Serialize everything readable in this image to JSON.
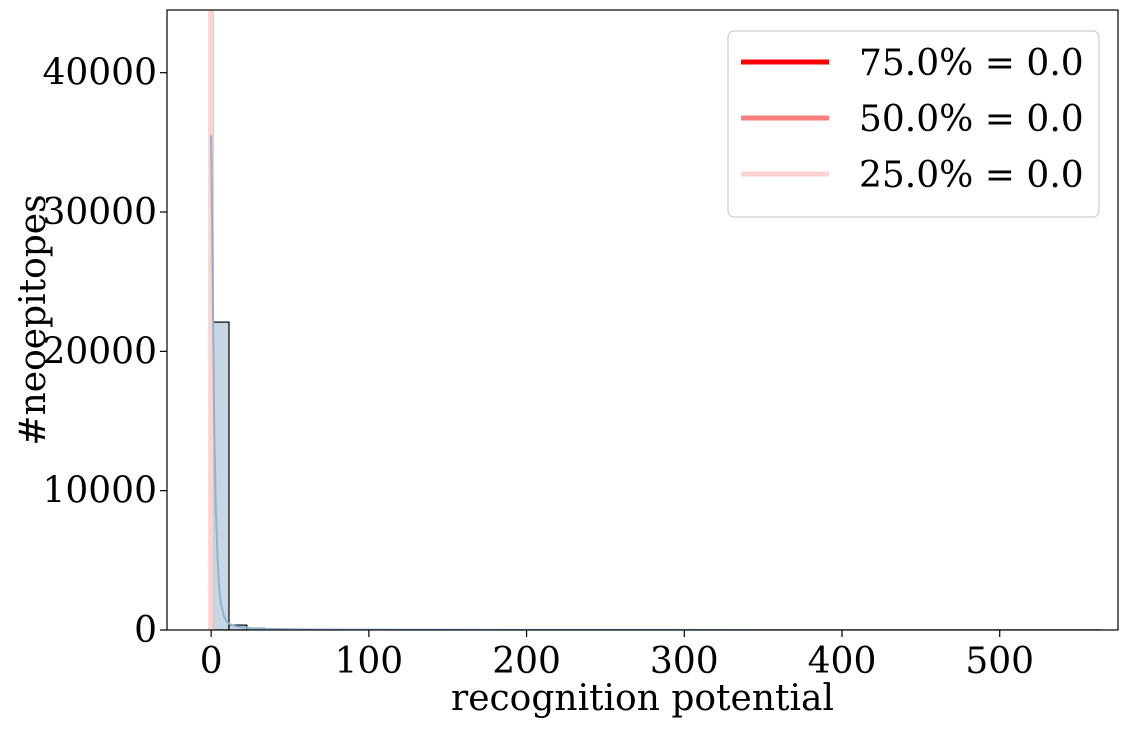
{
  "chart_data": {
    "type": "histogram",
    "xlabel": "recognition potential",
    "ylabel": "#neoepitopes",
    "xlim": [
      -28,
      575
    ],
    "ylim": [
      0,
      44500
    ],
    "xticks": [
      0,
      100,
      200,
      300,
      400,
      500
    ],
    "yticks": [
      0,
      10000,
      20000,
      30000,
      40000
    ],
    "grid": false,
    "bin_width": 11.3,
    "bins": [
      {
        "x0": 0,
        "x1": 11.3,
        "count": 22100
      },
      {
        "x0": 11.3,
        "x1": 22.6,
        "count": 350
      },
      {
        "x0": 22.6,
        "x1": 33.9,
        "count": 120
      },
      {
        "x0": 33.9,
        "x1": 45.2,
        "count": 70
      },
      {
        "x0": 45.2,
        "x1": 56.5,
        "count": 50
      },
      {
        "x0": 56.5,
        "x1": 67.8,
        "count": 40
      },
      {
        "x0": 67.8,
        "x1": 79.1,
        "count": 30
      },
      {
        "x0": 79.1,
        "x1": 90.4,
        "count": 25
      },
      {
        "x0": 90.4,
        "x1": 101.7,
        "count": 20
      },
      {
        "x0": 101.7,
        "x1": 113,
        "count": 15
      },
      {
        "x0": 113,
        "x1": 124.3,
        "count": 12
      },
      {
        "x0": 124.3,
        "x1": 135.6,
        "count": 10
      }
    ],
    "kde": {
      "x": [
        0,
        1,
        2,
        3,
        4,
        5,
        6,
        8,
        10,
        12,
        15,
        20,
        25,
        30,
        40,
        50,
        60,
        80,
        100,
        150,
        200,
        300,
        400,
        500,
        565
      ],
      "y": [
        35500,
        25000,
        14000,
        8500,
        5200,
        3200,
        2000,
        1000,
        600,
        400,
        280,
        180,
        130,
        100,
        70,
        50,
        40,
        30,
        25,
        15,
        10,
        5,
        3,
        2,
        1
      ]
    },
    "vlines": [
      {
        "label": "75.0% = 0.0",
        "x": 0.0,
        "color": "#ff0000"
      },
      {
        "label": "50.0% = 0.0",
        "x": 0.0,
        "color": "#f87e7e"
      },
      {
        "label": "25.0% = 0.0",
        "x": 0.0,
        "color": "#fbd3d3"
      }
    ],
    "legend_position": "top-right",
    "colors": {
      "bar_fill": "#c6d6e3",
      "bar_edge": "#000000",
      "kde_line": "#8fb2cc"
    }
  }
}
